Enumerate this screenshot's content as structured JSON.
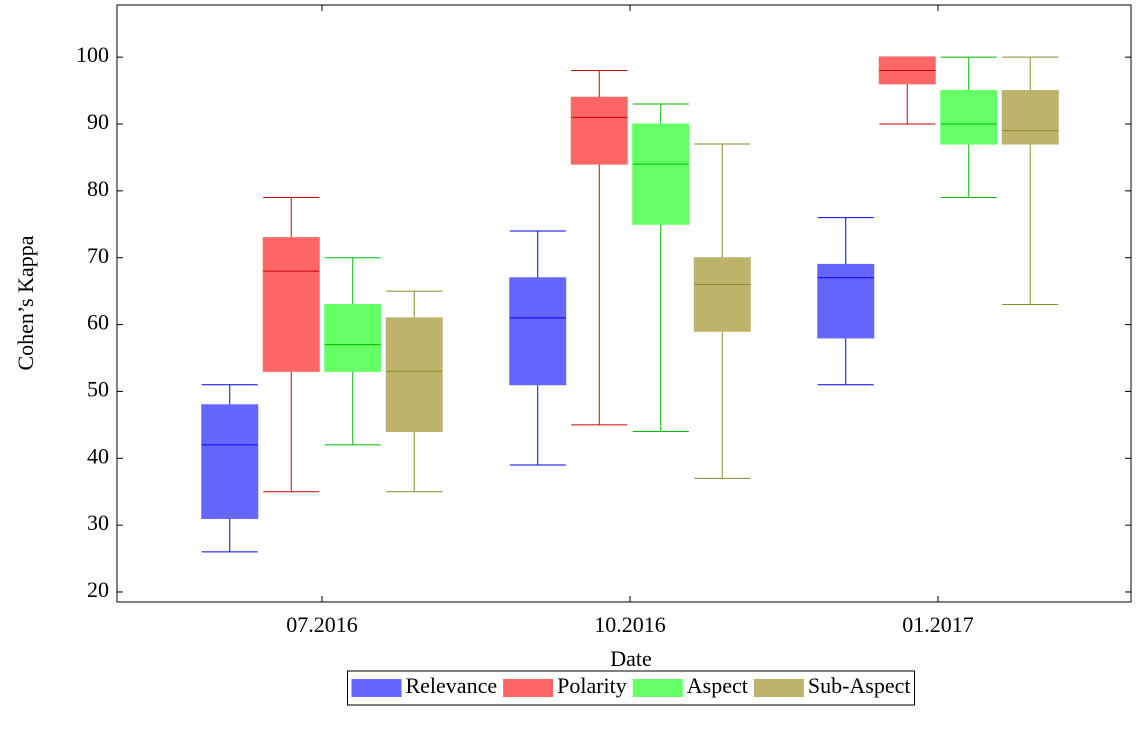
{
  "chart_data": {
    "type": "box",
    "xlabel": "Date",
    "ylabel": "Cohen’s Kappa",
    "categories": [
      "07.2016",
      "10.2016",
      "01.2017"
    ],
    "ylim": [
      18.5,
      107.8
    ],
    "yticks": [
      20,
      30,
      40,
      50,
      60,
      70,
      80,
      90,
      100
    ],
    "grid": false,
    "legend": "bottom",
    "series": [
      {
        "name": "Relevance",
        "color": "#6666ff",
        "line_color": "#0000ff",
        "min": [
          26,
          39,
          51
        ],
        "q1": [
          31,
          51,
          58
        ],
        "median": [
          42,
          61,
          67
        ],
        "q3": [
          48,
          67,
          69
        ],
        "max": [
          51,
          74,
          76
        ]
      },
      {
        "name": "Polarity",
        "color": "#ff6666",
        "line_color": "#cc0000",
        "min": [
          35,
          45,
          90
        ],
        "q1": [
          53,
          84,
          96
        ],
        "median": [
          68,
          91,
          98
        ],
        "q3": [
          73,
          94,
          100
        ],
        "max": [
          79,
          98,
          100
        ]
      },
      {
        "name": "Aspect",
        "color": "#66ff66",
        "line_color": "#00bb00",
        "min": [
          42,
          44,
          79
        ],
        "q1": [
          53,
          75,
          87
        ],
        "median": [
          57,
          84,
          90
        ],
        "q3": [
          63,
          90,
          95
        ],
        "max": [
          70,
          93,
          100
        ]
      },
      {
        "name": "Sub-Aspect",
        "color": "#bdb36a",
        "line_color": "#8c8a2e",
        "min": [
          35,
          37,
          63
        ],
        "q1": [
          44,
          59,
          87
        ],
        "median": [
          53,
          66,
          89
        ],
        "q3": [
          61,
          70,
          95
        ],
        "max": [
          65,
          87,
          100
        ]
      }
    ]
  }
}
